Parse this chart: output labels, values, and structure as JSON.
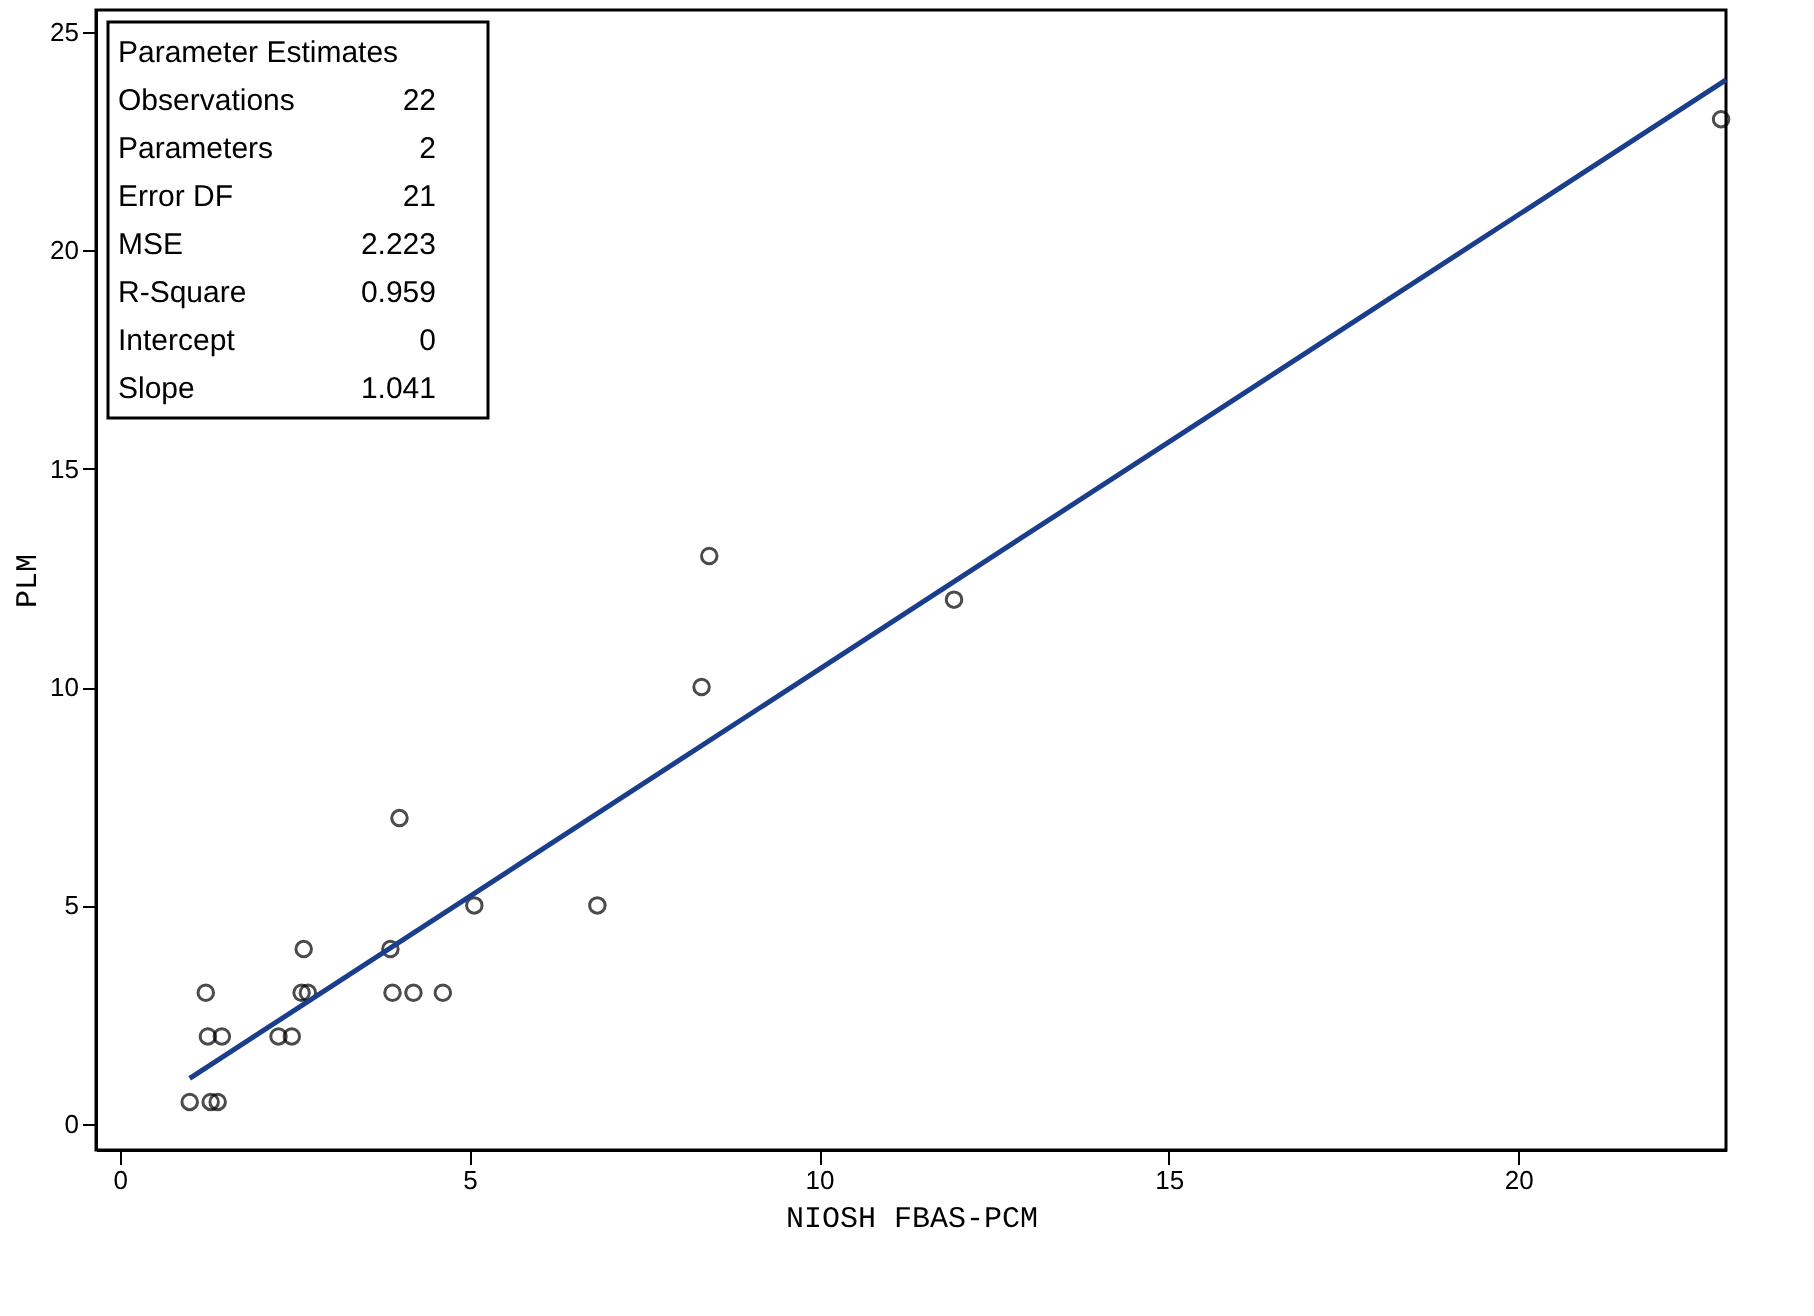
{
  "chart_data": {
    "type": "scatter",
    "xlabel": "NIOSH FBAS-PCM",
    "ylabel": "PLM",
    "xlim": [
      -0.34,
      22.97
    ],
    "ylim": [
      -0.6,
      25.5
    ],
    "xticks": [
      0,
      5,
      10,
      15,
      20
    ],
    "yticks": [
      0,
      5,
      10,
      15,
      20,
      25
    ],
    "grid": false,
    "marker": "circle",
    "series": [
      {
        "color": "#000000",
        "x": [
          1.0,
          1.3,
          1.4,
          1.26,
          1.46,
          1.23,
          2.27,
          2.46,
          2.6,
          2.69,
          2.63,
          3.87,
          3.9,
          4.2,
          4.62,
          4.0,
          5.07,
          6.83,
          8.32,
          8.43,
          11.93,
          22.9
        ],
        "values": [
          0.5,
          0.5,
          0.5,
          2,
          2,
          3,
          2,
          2,
          3,
          3,
          4,
          4,
          3,
          3,
          3,
          7,
          5,
          5,
          10,
          13,
          12,
          23
        ]
      },
      {
        "type": "line",
        "color": "#1a3d8c",
        "line_style": "solid",
        "marker": "none",
        "x": [
          1.0,
          22.97
        ],
        "values": [
          1.04,
          23.9
        ]
      }
    ],
    "annotations": [
      "Parameter Estimates",
      "Observations 22",
      "Parameters 2",
      "Error DF 21",
      "MSE 2.223",
      "R-Square 0.959",
      "Intercept 0",
      "Slope 1.041"
    ]
  }
}
